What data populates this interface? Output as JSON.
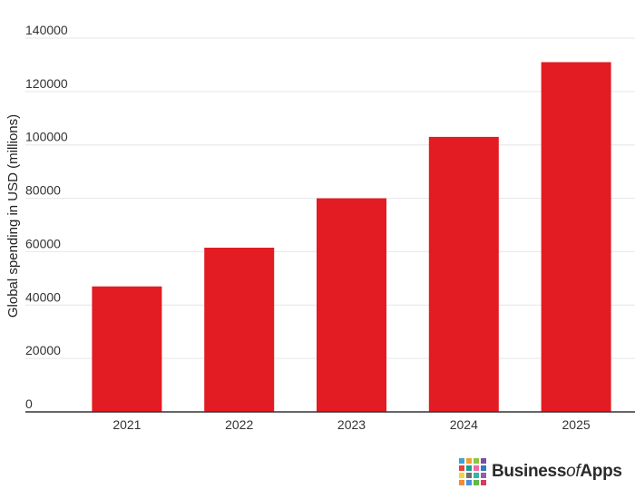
{
  "chart_data": {
    "type": "bar",
    "categories": [
      "2021",
      "2022",
      "2023",
      "2024",
      "2025"
    ],
    "values": [
      47000,
      61500,
      80000,
      103000,
      131000
    ],
    "ylabel": "Global spending in USD (millions)",
    "xlabel": "",
    "ylim": [
      0,
      140000
    ],
    "yticks": [
      0,
      20000,
      40000,
      60000,
      80000,
      100000,
      120000,
      140000
    ],
    "grid": true,
    "bar_color": "#e21c22"
  },
  "logo": {
    "part1": "Business",
    "part2": "of",
    "part3": "Apps",
    "tile_colors": [
      "#3ba3d6",
      "#f2a12d",
      "#8cc63f",
      "#7b4fa0",
      "#e8413b",
      "#1d9e8f",
      "#f06ba0",
      "#2e7dc2",
      "#f5d33b",
      "#6d6e71",
      "#34b5a5",
      "#9c5aa6",
      "#f7892f",
      "#4a90d9",
      "#5fba47",
      "#d63c5e"
    ]
  }
}
